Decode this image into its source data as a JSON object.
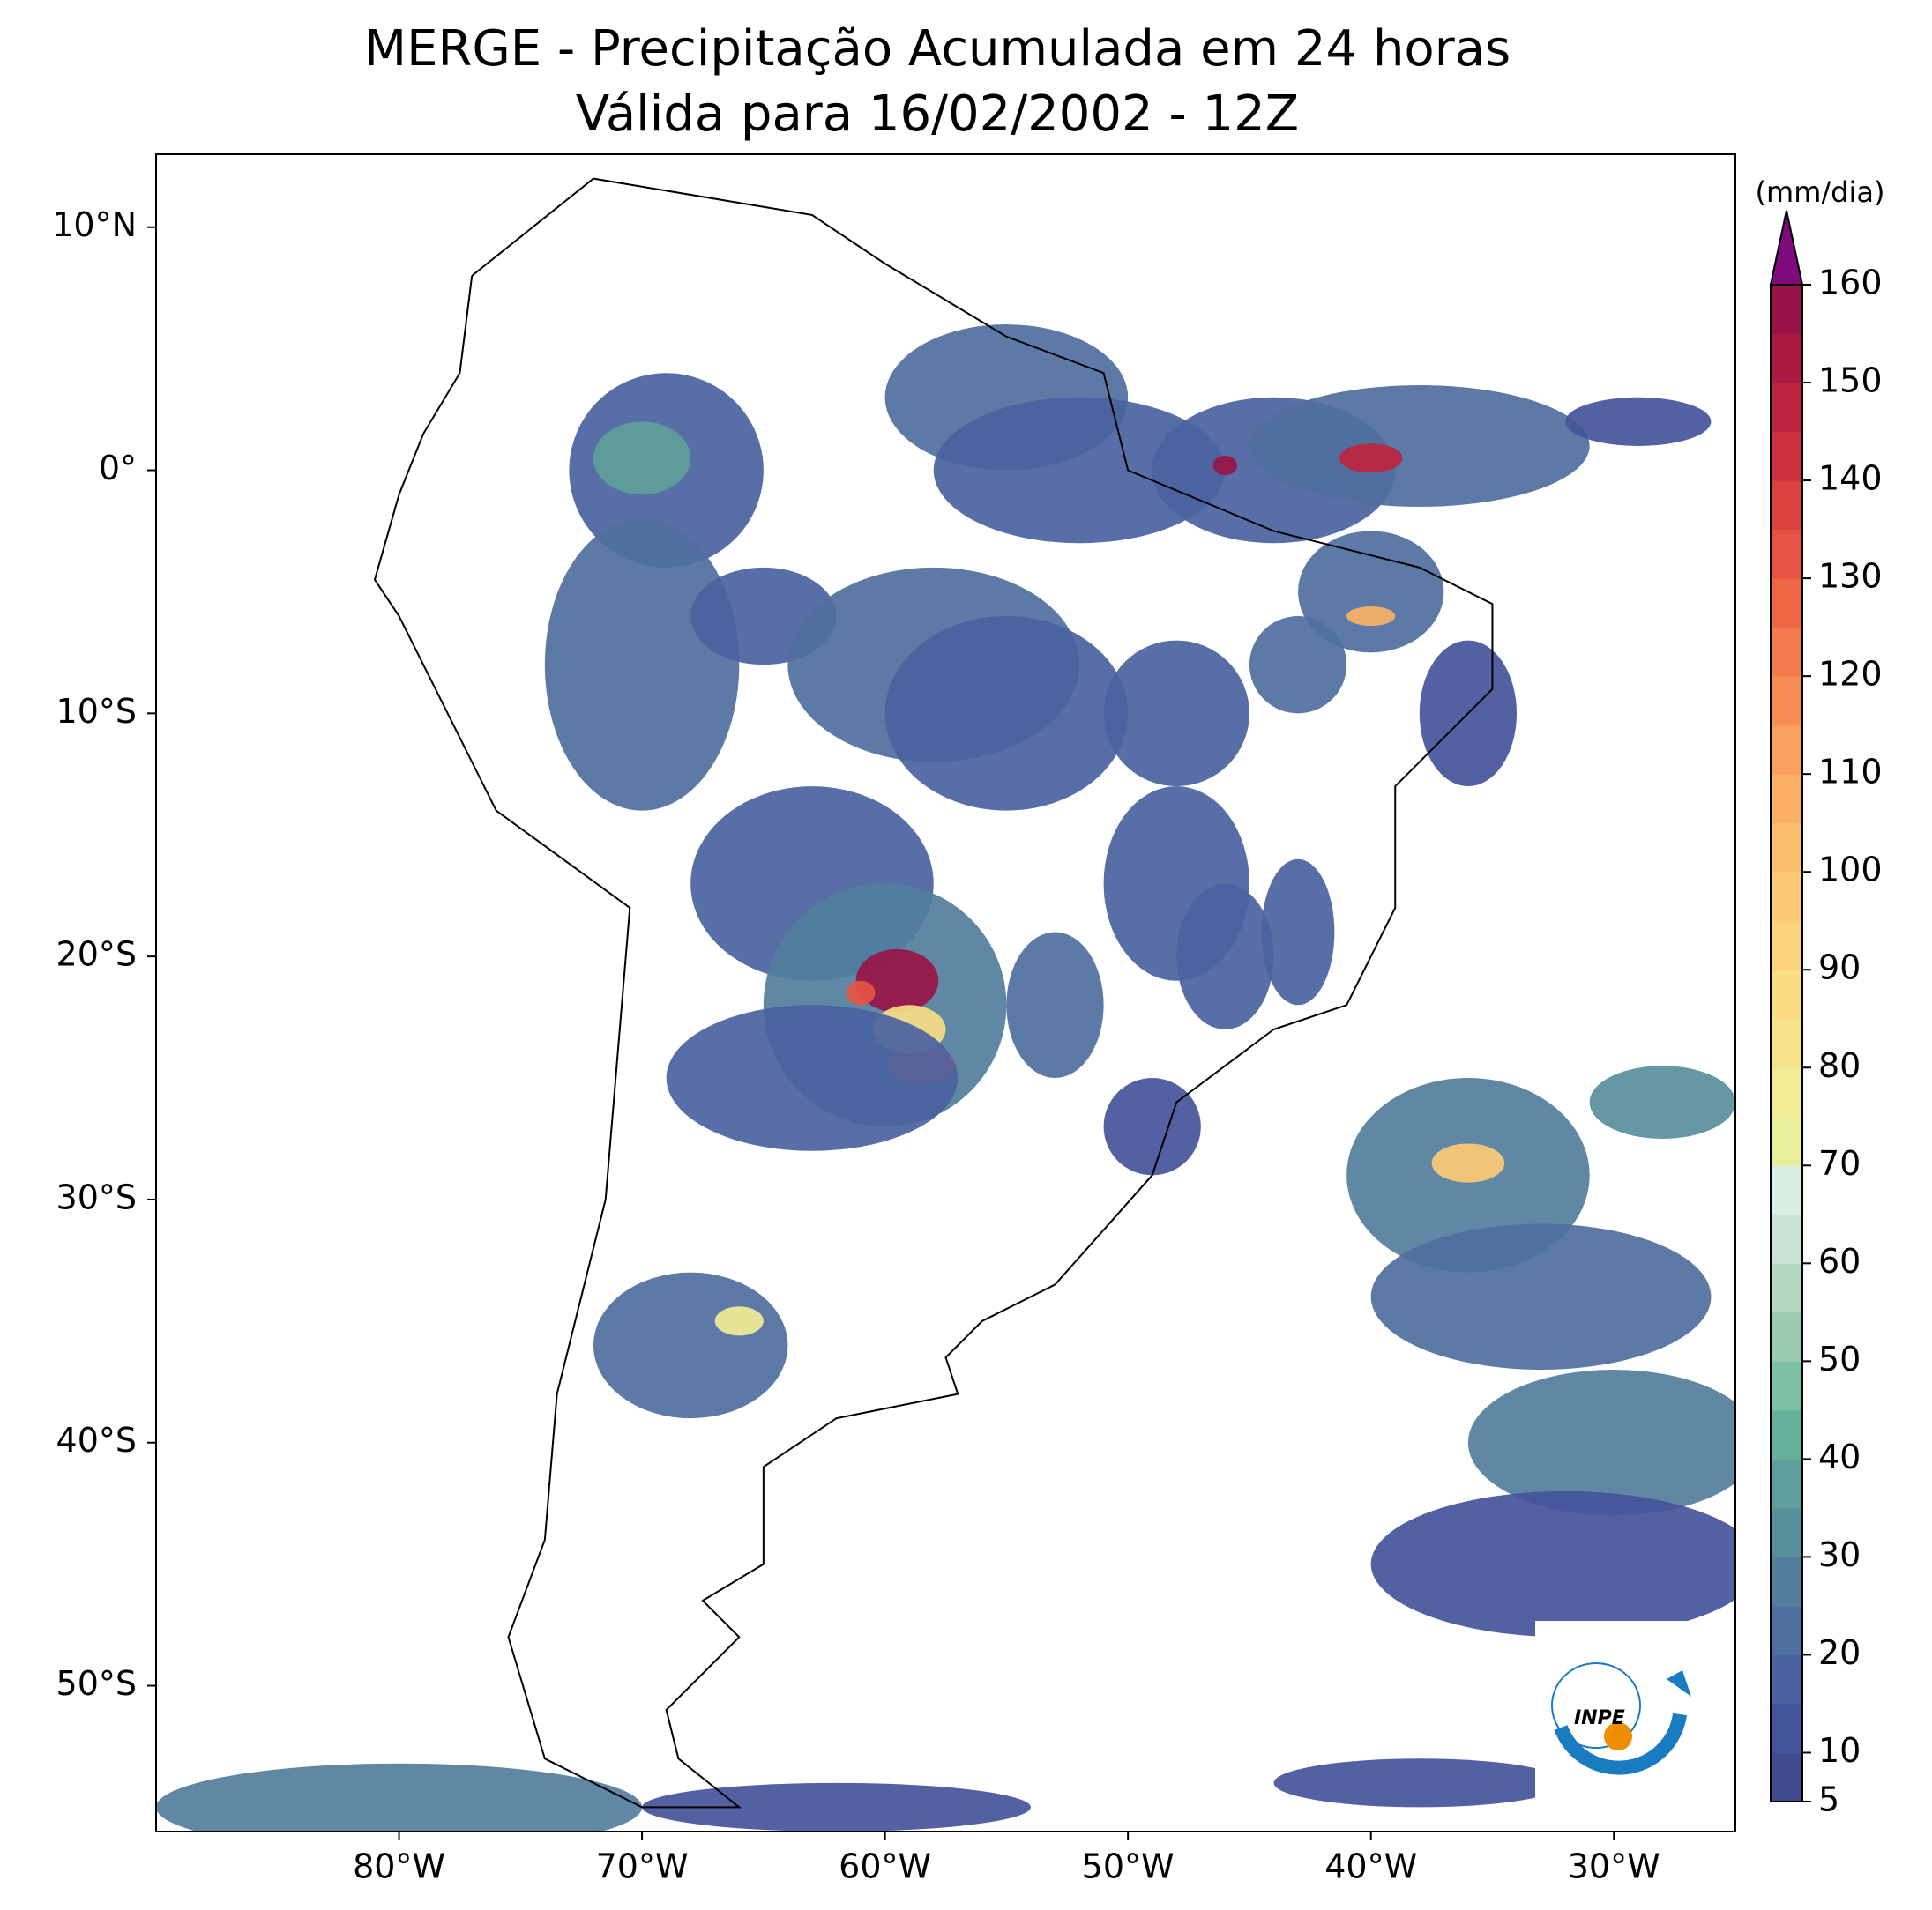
{
  "map": {
    "title": "MERGE - Precipitação Acumulada em 24 horas",
    "subtitle": "Válida para 16/02/2002 - 12Z",
    "xlim": [
      -90,
      -25
    ],
    "ylim": [
      -56,
      13
    ],
    "xticks": [
      {
        "value": -80,
        "label": "80°W"
      },
      {
        "value": -70,
        "label": "70°W"
      },
      {
        "value": -60,
        "label": "60°W"
      },
      {
        "value": -50,
        "label": "50°W"
      },
      {
        "value": -40,
        "label": "40°W"
      },
      {
        "value": -30,
        "label": "30°W"
      }
    ],
    "yticks": [
      {
        "value": 10,
        "label": "10°N"
      },
      {
        "value": 0,
        "label": "0°"
      },
      {
        "value": -10,
        "label": "10°S"
      },
      {
        "value": -20,
        "label": "20°S"
      },
      {
        "value": -30,
        "label": "30°S"
      },
      {
        "value": -40,
        "label": "40°S"
      },
      {
        "value": -50,
        "label": "50°S"
      }
    ],
    "logo": "INPE"
  },
  "colorbar": {
    "label": "(mm/dia)",
    "lim": [
      5,
      160
    ],
    "ticks": [
      5,
      10,
      20,
      30,
      40,
      50,
      60,
      70,
      80,
      90,
      100,
      110,
      120,
      130,
      140,
      150,
      160
    ],
    "levels": [
      5,
      10,
      15,
      20,
      25,
      30,
      35,
      40,
      45,
      50,
      55,
      60,
      65,
      70,
      75,
      80,
      85,
      90,
      95,
      100,
      105,
      110,
      115,
      120,
      125,
      130,
      135,
      140,
      145,
      150,
      155,
      160
    ],
    "colors": [
      "#414a8c",
      "#44549a",
      "#4a62a0",
      "#4f6f9f",
      "#537e9d",
      "#588f9c",
      "#5e9f9b",
      "#66b09c",
      "#7dc0a3",
      "#99ccb0",
      "#b2d8c2",
      "#c9e3d4",
      "#daeee2",
      "#e7ef9b",
      "#f0ec95",
      "#f6e38c",
      "#f9dc84",
      "#fbd37c",
      "#fcca75",
      "#fcbf6d",
      "#fbb066",
      "#f9a05e",
      "#f78e56",
      "#f47b4e",
      "#ef6647",
      "#e65342",
      "#db413f",
      "#cd313e",
      "#bd243f",
      "#ab1a43",
      "#981347"
    ],
    "extend_color": "#7e0a7e"
  }
}
